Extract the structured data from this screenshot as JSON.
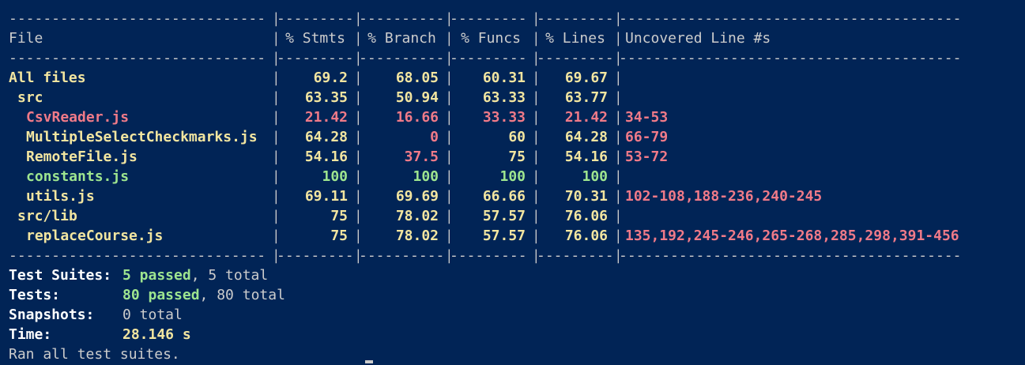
{
  "colors": {
    "background": "#012456",
    "yellow": "#f2e5a0",
    "red": "#f07a88",
    "green": "#9ee58f",
    "text": "#cccccc"
  },
  "table": {
    "header": {
      "file": "File",
      "stmts": "% Stmts",
      "branch": "% Branch",
      "funcs": "% Funcs",
      "lines": "% Lines",
      "uncovered": "Uncovered Line #s"
    },
    "rows": [
      {
        "file": "All files",
        "stmts": "69.2",
        "branch": "68.05",
        "funcs": "60.31",
        "lines": "69.67",
        "uncovered": ""
      },
      {
        "file": "src",
        "stmts": "63.35",
        "branch": "50.94",
        "funcs": "63.33",
        "lines": "63.77",
        "uncovered": ""
      },
      {
        "file": "CsvReader.js",
        "stmts": "21.42",
        "branch": "16.66",
        "funcs": "33.33",
        "lines": "21.42",
        "uncovered": "34-53"
      },
      {
        "file": "MultipleSelectCheckmarks.js",
        "stmts": "64.28",
        "branch": "0",
        "funcs": "60",
        "lines": "64.28",
        "uncovered": "66-79"
      },
      {
        "file": "RemoteFile.js",
        "stmts": "54.16",
        "branch": "37.5",
        "funcs": "75",
        "lines": "54.16",
        "uncovered": "53-72"
      },
      {
        "file": "constants.js",
        "stmts": "100",
        "branch": "100",
        "funcs": "100",
        "lines": "100",
        "uncovered": ""
      },
      {
        "file": "utils.js",
        "stmts": "69.11",
        "branch": "69.69",
        "funcs": "66.66",
        "lines": "70.31",
        "uncovered": "102-108,188-236,240-245"
      },
      {
        "file": "src/lib",
        "stmts": "75",
        "branch": "78.02",
        "funcs": "57.57",
        "lines": "76.06",
        "uncovered": ""
      },
      {
        "file": "replaceCourse.js",
        "stmts": "75",
        "branch": "78.02",
        "funcs": "57.57",
        "lines": "76.06",
        "uncovered": "135,192,245-246,265-268,285,298,391-456"
      }
    ]
  },
  "summary": {
    "test_suites_label": "Test Suites:",
    "test_suites_passed": "5 passed",
    "test_suites_total": ", 5 total",
    "tests_label": "Tests:",
    "tests_passed": "80 passed",
    "tests_total": ", 80 total",
    "snapshots_label": "Snapshots:",
    "snapshots_value": "0 total",
    "time_label": "Time:",
    "time_value": "28.146 s",
    "ran_all": "Ran all test suites."
  }
}
